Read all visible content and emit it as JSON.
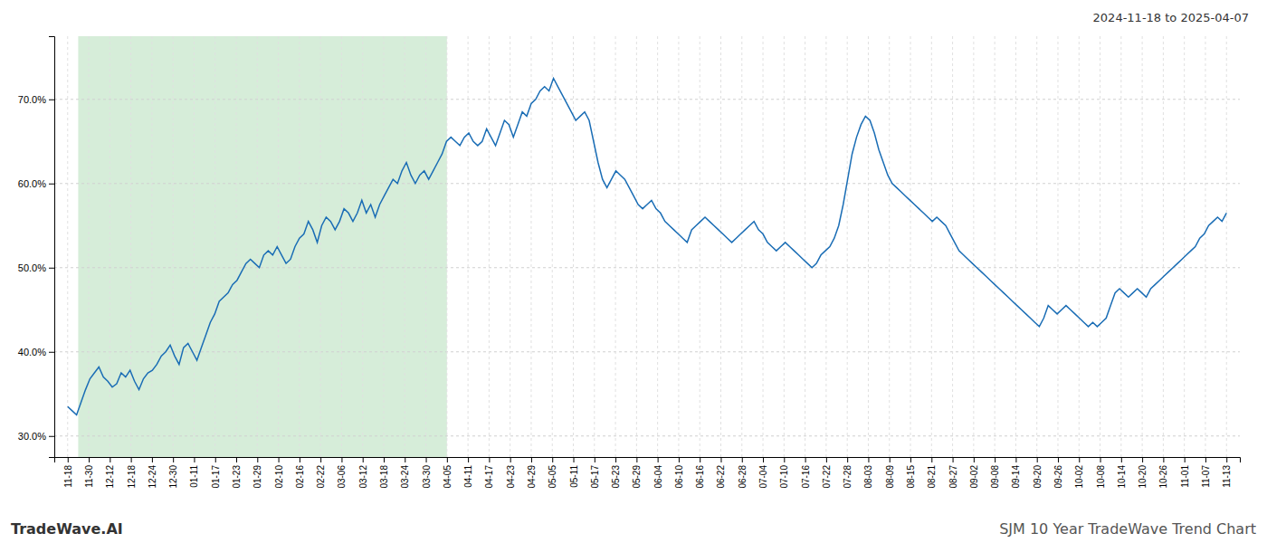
{
  "chart_data": {
    "type": "line",
    "title": "2024-11-18 to 2025-04-07",
    "annotations": [
      {
        "text": "TradeWave.AI"
      },
      {
        "text": "SJM 10 Year TradeWave Trend Chart"
      }
    ],
    "color": "#1a6db5",
    "grid": true,
    "values": [
      33.5,
      33.0,
      32.5,
      34.0,
      35.5,
      36.8,
      37.5,
      38.2,
      37.0,
      36.5,
      35.8,
      36.2,
      37.5,
      37.0,
      37.8,
      36.5,
      35.5,
      36.8,
      37.5,
      37.8,
      38.5,
      39.5,
      40.0,
      40.8,
      39.5,
      38.5,
      40.5,
      41.0,
      40.0,
      39.0,
      40.5,
      42.0,
      43.5,
      44.5,
      46.0,
      46.5,
      47.0,
      48.0,
      48.5,
      49.5,
      50.5,
      51.0,
      50.5,
      50.0,
      51.5,
      52.0,
      51.5,
      52.5,
      51.5,
      50.5,
      51.0,
      52.5,
      53.5,
      54.0,
      55.5,
      54.5,
      53.0,
      55.0,
      56.0,
      55.5,
      54.5,
      55.5,
      57.0,
      56.5,
      55.5,
      56.5,
      58.0,
      56.5,
      57.5,
      56.0,
      57.5,
      58.5,
      59.5,
      60.5,
      60.0,
      61.5,
      62.5,
      61.0,
      60.0,
      61.0,
      61.5,
      60.5,
      61.5,
      62.5,
      63.5,
      65.0,
      65.5,
      65.0,
      64.5,
      65.5,
      66.0,
      65.0,
      64.5,
      65.0,
      66.5,
      65.5,
      64.5,
      66.0,
      67.5,
      67.0,
      65.5,
      67.0,
      68.5,
      68.0,
      69.5,
      70.0,
      71.0,
      71.5,
      71.0,
      72.5,
      71.5,
      70.5,
      69.5,
      68.5,
      67.5,
      68.0,
      68.5,
      67.5,
      65.0,
      62.5,
      60.5,
      59.5,
      60.5,
      61.5,
      61.0,
      60.5,
      59.5,
      58.5,
      57.5,
      57.0,
      57.5,
      58.0,
      57.0,
      56.5,
      55.5,
      55.0,
      54.5,
      54.0,
      53.5,
      53.0,
      54.5,
      55.0,
      55.5,
      56.0,
      55.5,
      55.0,
      54.5,
      54.0,
      53.5,
      53.0,
      53.5,
      54.0,
      54.5,
      55.0,
      55.5,
      54.5,
      54.0,
      53.0,
      52.5,
      52.0,
      52.5,
      53.0,
      52.5,
      52.0,
      51.5,
      51.0,
      50.5,
      50.0,
      50.5,
      51.5,
      52.0,
      52.5,
      53.5,
      55.0,
      57.5,
      60.5,
      63.5,
      65.5,
      67.0,
      68.0,
      67.5,
      66.0,
      64.0,
      62.5,
      61.0,
      60.0,
      59.5,
      59.0,
      58.5,
      58.0,
      57.5,
      57.0,
      56.5,
      56.0,
      55.5,
      56.0,
      55.5,
      55.0,
      54.0,
      53.0,
      52.0,
      51.5,
      51.0,
      50.5,
      50.0,
      49.5,
      49.0,
      48.5,
      48.0,
      47.5,
      47.0,
      46.5,
      46.0,
      45.5,
      45.0,
      44.5,
      44.0,
      43.5,
      43.0,
      44.0,
      45.5,
      45.0,
      44.5,
      45.0,
      45.5,
      45.0,
      44.5,
      44.0,
      43.5,
      43.0,
      43.5,
      43.0,
      43.5,
      44.0,
      45.5,
      47.0,
      47.5,
      47.0,
      46.5,
      47.0,
      47.5,
      47.0,
      46.5,
      47.5,
      48.0,
      48.5,
      49.0,
      49.5,
      50.0,
      50.5,
      51.0,
      51.5,
      52.0,
      52.5,
      53.5,
      54.0,
      55.0,
      55.5,
      56.0,
      55.5,
      56.5
    ],
    "spans": [
      {
        "x0": 2.3636363636,
        "x1": 85.0909090909,
        "color": "#d6edd9"
      }
    ],
    "xlim": [
      -3,
      263
    ],
    "xticks": [
      {
        "value": 0,
        "label": "11-18"
      },
      {
        "value": 4.7272727273,
        "label": "11-30"
      },
      {
        "value": 9.4545454545,
        "label": "12-12"
      },
      {
        "value": 14.1818181818,
        "label": "12-18"
      },
      {
        "value": 18.9090909091,
        "label": "12-24"
      },
      {
        "value": 23.6363636364,
        "label": "12-30"
      },
      {
        "value": 28.3636363636,
        "label": "01-11"
      },
      {
        "value": 33.0909090909,
        "label": "01-17"
      },
      {
        "value": 37.8181818182,
        "label": "01-23"
      },
      {
        "value": 42.5454545455,
        "label": "01-29"
      },
      {
        "value": 47.2727272727,
        "label": "02-10"
      },
      {
        "value": 52,
        "label": "02-16"
      },
      {
        "value": 56.7272727273,
        "label": "02-22"
      },
      {
        "value": 61.4545454545,
        "label": "03-06"
      },
      {
        "value": 66.1818181818,
        "label": "03-12"
      },
      {
        "value": 70.9090909091,
        "label": "03-18"
      },
      {
        "value": 75.6363636364,
        "label": "03-24"
      },
      {
        "value": 80.3636363636,
        "label": "03-30"
      },
      {
        "value": 85.0909090909,
        "label": "04-05"
      },
      {
        "value": 89.8181818182,
        "label": "04-11"
      },
      {
        "value": 94.5454545455,
        "label": "04-17"
      },
      {
        "value": 99.2727272727,
        "label": "04-23"
      },
      {
        "value": 104,
        "label": "04-29"
      },
      {
        "value": 108.7272727273,
        "label": "05-05"
      },
      {
        "value": 113.4545454545,
        "label": "05-11"
      },
      {
        "value": 118.1818181818,
        "label": "05-17"
      },
      {
        "value": 122.9090909091,
        "label": "05-23"
      },
      {
        "value": 127.6363636364,
        "label": "05-29"
      },
      {
        "value": 132.3636363636,
        "label": "06-04"
      },
      {
        "value": 137.0909090909,
        "label": "06-10"
      },
      {
        "value": 141.8181818182,
        "label": "06-16"
      },
      {
        "value": 146.5454545455,
        "label": "06-22"
      },
      {
        "value": 151.2727272727,
        "label": "06-28"
      },
      {
        "value": 156,
        "label": "07-04"
      },
      {
        "value": 160.7272727273,
        "label": "07-10"
      },
      {
        "value": 165.4545454545,
        "label": "07-16"
      },
      {
        "value": 170.1818181818,
        "label": "07-22"
      },
      {
        "value": 174.9090909091,
        "label": "07-28"
      },
      {
        "value": 179.6363636364,
        "label": "08-03"
      },
      {
        "value": 184.3636363636,
        "label": "08-09"
      },
      {
        "value": 189.0909090909,
        "label": "08-15"
      },
      {
        "value": 193.8181818182,
        "label": "08-21"
      },
      {
        "value": 198.5454545455,
        "label": "08-27"
      },
      {
        "value": 203.2727272727,
        "label": "09-02"
      },
      {
        "value": 208,
        "label": "09-08"
      },
      {
        "value": 212.7272727273,
        "label": "09-14"
      },
      {
        "value": 217.4545454545,
        "label": "09-20"
      },
      {
        "value": 222.1818181818,
        "label": "09-26"
      },
      {
        "value": 226.9090909091,
        "label": "10-02"
      },
      {
        "value": 231.6363636364,
        "label": "10-08"
      },
      {
        "value": 236.3636363636,
        "label": "10-14"
      },
      {
        "value": 241.0909090909,
        "label": "10-20"
      },
      {
        "value": 245.8181818182,
        "label": "10-26"
      },
      {
        "value": 250.5454545455,
        "label": "11-01"
      },
      {
        "value": 255.2727272727,
        "label": "11-07"
      },
      {
        "value": 260,
        "label": "11-13"
      }
    ],
    "ylim": [
      27.5,
      77.5
    ],
    "yticks": [
      {
        "value": 30,
        "label": "30.0%"
      },
      {
        "value": 40,
        "label": "40.0%"
      },
      {
        "value": 50,
        "label": "50.0%"
      },
      {
        "value": 60,
        "label": "60.0%"
      },
      {
        "value": 70,
        "label": "70.0%"
      }
    ]
  }
}
